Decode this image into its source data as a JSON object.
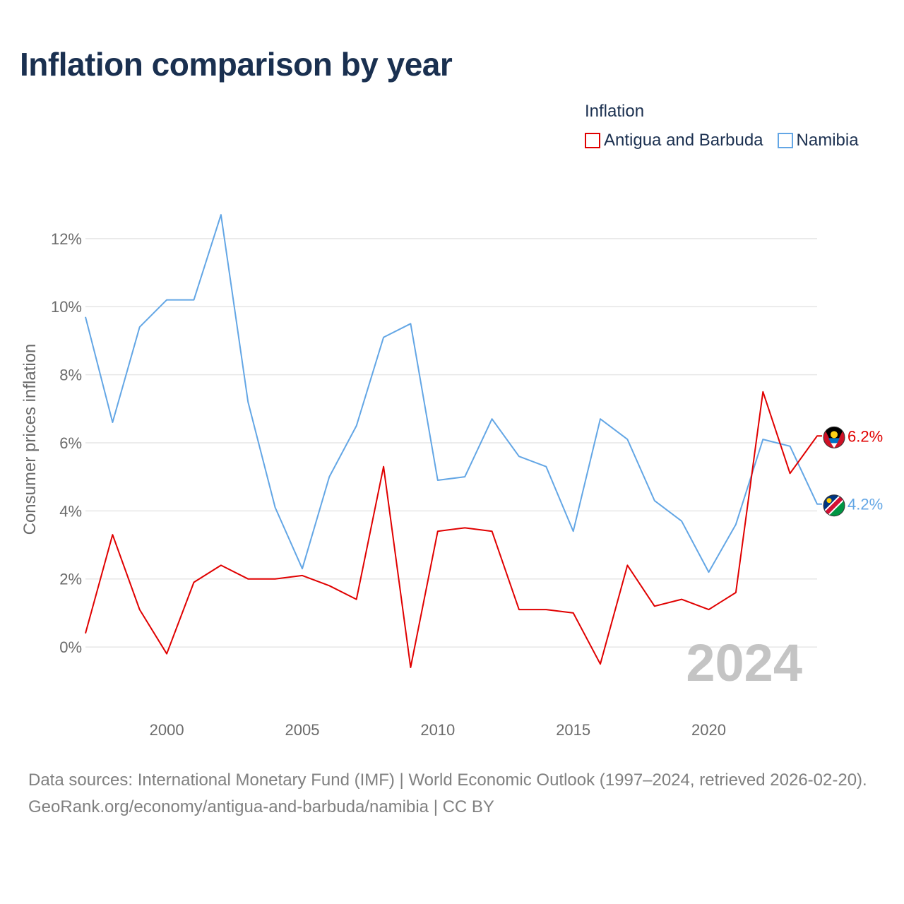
{
  "title": "Inflation comparison by year",
  "legend": {
    "title": "Inflation",
    "items": [
      {
        "label": "Antigua and Barbuda",
        "color": "#e00000"
      },
      {
        "label": "Namibia",
        "color": "#63a6e5"
      }
    ]
  },
  "chart_data": {
    "type": "line",
    "title": "Inflation comparison by year",
    "xlabel": "",
    "ylabel": "Consumer prices inflation",
    "x": [
      1997,
      1998,
      1999,
      2000,
      2001,
      2002,
      2003,
      2004,
      2005,
      2006,
      2007,
      2008,
      2009,
      2010,
      2011,
      2012,
      2013,
      2014,
      2015,
      2016,
      2017,
      2018,
      2019,
      2020,
      2021,
      2022,
      2023,
      2024
    ],
    "xlim": [
      1997,
      2024
    ],
    "ylim": [
      -1.7,
      13.2
    ],
    "xticks": [
      2000,
      2005,
      2010,
      2015,
      2020
    ],
    "yticks": [
      0,
      2,
      4,
      6,
      8,
      10,
      12
    ],
    "ytick_labels": [
      "0%",
      "2%",
      "4%",
      "6%",
      "8%",
      "10%",
      "12%"
    ],
    "grid": true,
    "legend_position": "top-right",
    "watermark_year": "2024",
    "series": [
      {
        "name": "Antigua and Barbuda",
        "color": "#e00000",
        "values": [
          0.4,
          3.3,
          1.1,
          -0.2,
          1.9,
          2.4,
          2.0,
          2.0,
          2.1,
          1.8,
          1.4,
          5.3,
          -0.6,
          3.4,
          3.5,
          3.4,
          1.1,
          1.1,
          1.0,
          -0.5,
          2.4,
          1.2,
          1.4,
          1.1,
          1.6,
          7.5,
          5.1,
          6.2
        ],
        "end_label": "6.2%"
      },
      {
        "name": "Namibia",
        "color": "#63a6e5",
        "values": [
          9.7,
          6.6,
          9.4,
          10.2,
          10.2,
          12.7,
          7.2,
          4.1,
          2.3,
          5.0,
          6.5,
          9.1,
          9.5,
          4.9,
          5.0,
          6.7,
          5.6,
          5.3,
          3.4,
          6.7,
          6.1,
          4.3,
          3.7,
          2.2,
          3.6,
          6.1,
          5.9,
          4.2
        ],
        "end_label": "4.2%"
      }
    ]
  },
  "footer": {
    "sources": "Data sources: International Monetary Fund (IMF) | World Economic Outlook (1997–2024, retrieved 2026-02-20).",
    "credit": "GeoRank.org/economy/antigua-and-barbuda/namibia | CC BY"
  }
}
